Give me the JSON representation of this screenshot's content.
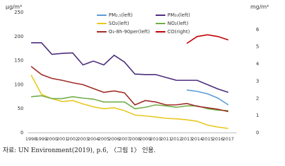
{
  "chart_data": {
    "type": "line",
    "y_unit": "μg/m³",
    "y2_unit": "mg/m³",
    "categories": [
      "1998",
      "1999",
      "2000",
      "2001",
      "2002",
      "2003",
      "2004",
      "2005",
      "2006",
      "2007",
      "2008",
      "2009",
      "2010",
      "2011",
      "2012",
      "2013",
      "2014",
      "2015",
      "2016",
      "2017"
    ],
    "ylim": [
      0,
      250
    ],
    "yticks": [
      0,
      50,
      100,
      150,
      200,
      250
    ],
    "y2lim": [
      0,
      7
    ],
    "y2ticks": [
      0,
      1,
      2,
      3,
      4,
      5,
      6
    ],
    "series": [
      {
        "name": "PM₂.₅(left)",
        "color": "#5b9bd5",
        "values": [
          null,
          null,
          null,
          null,
          null,
          null,
          null,
          null,
          null,
          null,
          null,
          null,
          null,
          null,
          null,
          89,
          86,
          81,
          72,
          58
        ]
      },
      {
        "name": "PM₁₀(left)",
        "color": "#4b2a7b",
        "values": [
          187,
          187,
          163,
          165,
          166,
          141,
          149,
          141,
          161,
          147,
          122,
          121,
          121,
          115,
          109,
          109,
          109,
          100,
          91,
          84
        ]
      },
      {
        "name": "SO₂(left)",
        "color": "#e8c81e",
        "values": [
          120,
          80,
          71,
          65,
          67,
          60,
          54,
          50,
          52,
          46,
          37,
          35,
          33,
          30,
          29,
          27,
          24,
          16,
          12,
          9
        ]
      },
      {
        "name": "NO₂(left)",
        "color": "#70ad47",
        "values": [
          75,
          77,
          71,
          71,
          75,
          72,
          70,
          64,
          64,
          64,
          50,
          53,
          58,
          56,
          53,
          56,
          56,
          50,
          47,
          46
        ]
      },
      {
        "name": "O₃-8h-90per(left)",
        "color": "#9e2b25",
        "values": [
          138,
          121,
          113,
          109,
          104,
          100,
          92,
          84,
          87,
          83,
          58,
          67,
          64,
          58,
          58,
          61,
          55,
          52,
          49,
          44
        ]
      },
      {
        "name": "CO(right)",
        "color": "#c00000",
        "axis": "y2",
        "values": [
          null,
          null,
          null,
          null,
          null,
          null,
          null,
          null,
          null,
          null,
          null,
          null,
          null,
          null,
          null,
          5.2,
          5.6,
          5.7,
          5.6,
          5.4
        ]
      }
    ]
  },
  "caption": "자료: UN Environment(2019), p.6, 〈그림 1〉 인용."
}
